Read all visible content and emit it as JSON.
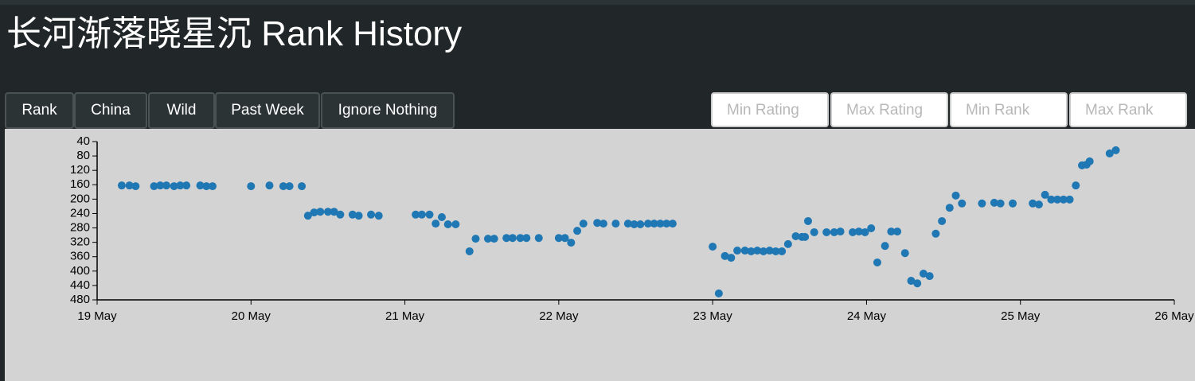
{
  "header": {
    "title": "长河渐落晓星沉 Rank History"
  },
  "buttons": [
    "Rank",
    "China",
    "Wild",
    "Past Week",
    "Ignore Nothing"
  ],
  "inputs": [
    "Min Rating",
    "Max Rating",
    "Min Rank",
    "Max Rank"
  ],
  "chart_data": {
    "type": "scatter",
    "color": "#1f77b4",
    "xlim": [
      19,
      26
    ],
    "xticks": [
      {
        "value": 19,
        "label": "19 May"
      },
      {
        "value": 20,
        "label": "20 May"
      },
      {
        "value": 21,
        "label": "21 May"
      },
      {
        "value": 22,
        "label": "22 May"
      },
      {
        "value": 23,
        "label": "23 May"
      },
      {
        "value": 24,
        "label": "24 May"
      },
      {
        "value": 25,
        "label": "25 May"
      },
      {
        "value": 26,
        "label": "26 May"
      }
    ],
    "ylim": [
      480,
      40
    ],
    "yticks": [
      40,
      80,
      120,
      160,
      200,
      240,
      280,
      320,
      360,
      400,
      440,
      480
    ],
    "x": [
      19.16,
      19.21,
      19.25,
      19.37,
      19.41,
      19.45,
      19.5,
      19.54,
      19.58,
      19.67,
      19.71,
      19.75,
      20.0,
      20.12,
      20.21,
      20.25,
      20.33,
      20.37,
      20.41,
      20.45,
      20.5,
      20.54,
      20.58,
      20.66,
      20.7,
      20.78,
      20.83,
      21.07,
      21.11,
      21.16,
      21.2,
      21.24,
      21.28,
      21.33,
      21.42,
      21.46,
      21.54,
      21.58,
      21.66,
      21.7,
      21.75,
      21.79,
      21.87,
      22.0,
      22.04,
      22.08,
      22.12,
      22.16,
      22.25,
      22.29,
      22.37,
      22.45,
      22.49,
      22.53,
      22.58,
      22.62,
      22.66,
      22.7,
      22.74,
      23.0,
      23.04,
      23.08,
      23.12,
      23.16,
      23.21,
      23.25,
      23.29,
      23.33,
      23.37,
      23.41,
      23.45,
      23.49,
      23.54,
      23.58,
      23.6,
      23.62,
      23.66,
      23.74,
      23.79,
      23.83,
      23.91,
      23.95,
      23.99,
      24.03,
      24.07,
      24.12,
      24.16,
      24.2,
      24.25,
      24.29,
      24.33,
      24.37,
      24.41,
      24.45,
      24.49,
      24.54,
      24.58,
      24.62,
      24.75,
      24.83,
      24.87,
      24.95,
      25.08,
      25.12,
      25.16,
      25.2,
      25.24,
      25.28,
      25.32,
      25.36,
      25.4,
      25.43,
      25.45,
      25.58,
      25.62
    ],
    "values": [
      162,
      162,
      164,
      164,
      162,
      162,
      164,
      162,
      162,
      162,
      164,
      164,
      164,
      162,
      164,
      164,
      164,
      246,
      237,
      235,
      235,
      235,
      243,
      243,
      246,
      243,
      246,
      243,
      243,
      243,
      268,
      250,
      270,
      270,
      345,
      310,
      310,
      310,
      308,
      308,
      308,
      308,
      308,
      308,
      308,
      321,
      288,
      268,
      266,
      268,
      268,
      268,
      270,
      270,
      268,
      268,
      268,
      268,
      268,
      332,
      462,
      358,
      363,
      343,
      343,
      345,
      343,
      345,
      343,
      345,
      345,
      325,
      303,
      305,
      305,
      261,
      292,
      292,
      292,
      290,
      292,
      290,
      292,
      281,
      376,
      330,
      290,
      290,
      350,
      427,
      434,
      407,
      414,
      296,
      261,
      224,
      190,
      212,
      212,
      210,
      212,
      212,
      212,
      215,
      188,
      201,
      201,
      201,
      201,
      162,
      106,
      104,
      95,
      73,
      64
    ]
  }
}
